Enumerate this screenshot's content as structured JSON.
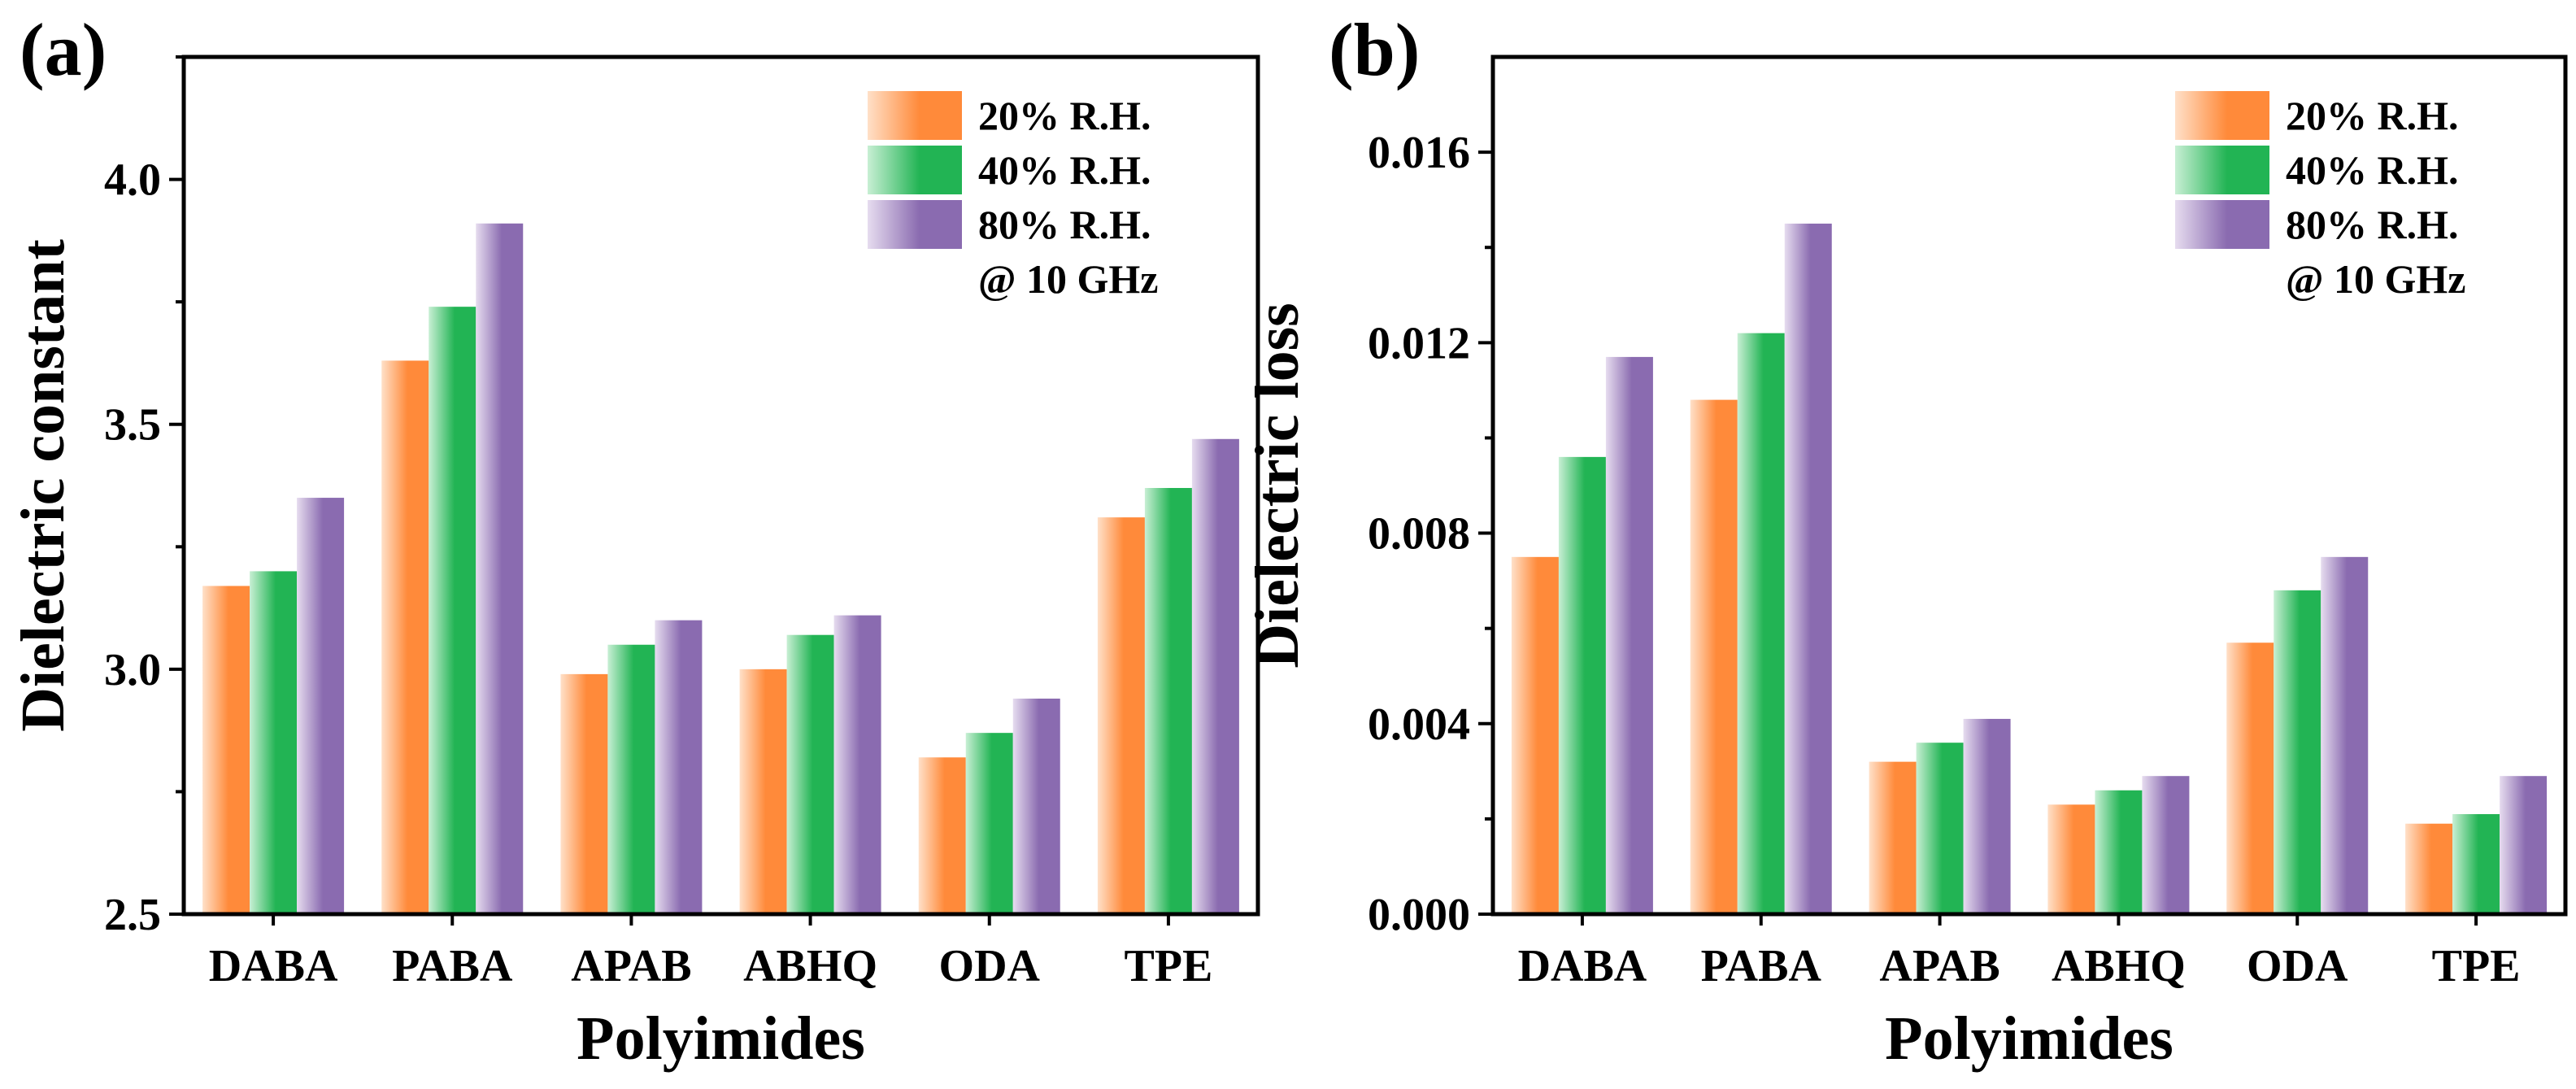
{
  "colors": {
    "s20": "#ff8a3a",
    "s40": "#22b454",
    "s80": "#8a6bb0"
  },
  "chart_data": [
    {
      "type": "bar",
      "panel_label": "(a)",
      "xlabel": "Polyimides",
      "ylabel": "Dielectric constant",
      "ylim": [
        2.5,
        4.25
      ],
      "yticks": [
        2.5,
        3.0,
        3.5,
        4.0
      ],
      "ytick_labels": [
        "2.5",
        "3.0",
        "3.5",
        "4.0"
      ],
      "categories": [
        "DABA",
        "PABA",
        "APAB",
        "ABHQ",
        "ODA",
        "TPE"
      ],
      "legend_position": "top-right",
      "note": "@ 10 GHz",
      "series": [
        {
          "name": "20% R.H.",
          "values": [
            3.17,
            3.63,
            2.99,
            3.0,
            2.82,
            3.31
          ]
        },
        {
          "name": "40% R.H.",
          "values": [
            3.2,
            3.74,
            3.05,
            3.07,
            2.87,
            3.37
          ]
        },
        {
          "name": "80% R.H.",
          "values": [
            3.35,
            3.91,
            3.1,
            3.11,
            2.94,
            3.47
          ]
        }
      ]
    },
    {
      "type": "bar",
      "panel_label": "(b)",
      "xlabel": "Polyimides",
      "ylabel": "Dielectric loss",
      "ylim": [
        0.0,
        0.018
      ],
      "yticks": [
        0.0,
        0.004,
        0.008,
        0.012,
        0.016
      ],
      "ytick_labels": [
        "0.000",
        "0.004",
        "0.008",
        "0.012",
        "0.016"
      ],
      "categories": [
        "DABA",
        "PABA",
        "APAB",
        "ABHQ",
        "ODA",
        "TPE"
      ],
      "legend_position": "top-right",
      "note": "@ 10 GHz",
      "series": [
        {
          "name": "20% R.H.",
          "values": [
            0.0075,
            0.0108,
            0.0032,
            0.0023,
            0.0057,
            0.0019
          ]
        },
        {
          "name": "40% R.H.",
          "values": [
            0.0096,
            0.0122,
            0.0036,
            0.0026,
            0.0068,
            0.0021
          ]
        },
        {
          "name": "80% R.H.",
          "values": [
            0.0117,
            0.0145,
            0.0041,
            0.0029,
            0.0075,
            0.0029
          ]
        }
      ]
    }
  ]
}
